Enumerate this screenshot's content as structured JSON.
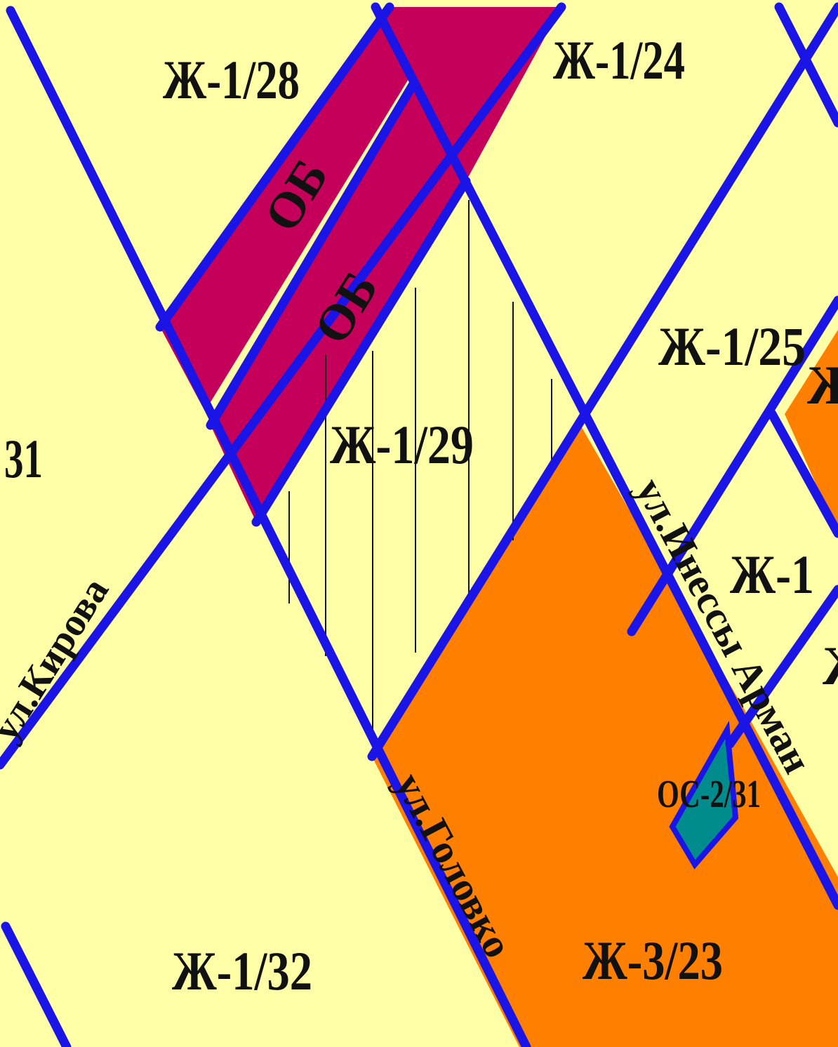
{
  "colors": {
    "background": "#ffffa8",
    "road": "#1a14e6",
    "public_zone": "#c5005a",
    "orange_zone": "#ff7f00",
    "teal_zone": "#008c8c",
    "hatch_line": "#111111",
    "label": "#111111"
  },
  "zones": {
    "zh_1_28": "Ж-1/28",
    "zh_1_24": "Ж-1/24",
    "zh_1_25": "Ж-1/25",
    "zh_1_29": "Ж-1/29",
    "zh_1_32": "Ж-1/32",
    "zh_3_23": "Ж-3/23",
    "zh_1_partial": "Ж-1",
    "left_partial": "31",
    "right_partial_top": "Ж",
    "right_partial_mid": "Ж",
    "os_2_31": "ОС-2/31",
    "ob_upper": "ОБ",
    "ob_lower": "ОБ"
  },
  "streets": {
    "kirova": "ул.Кирова",
    "golovko": "ул.Головко",
    "inessy_armand": "ул.Инессы Арман"
  }
}
